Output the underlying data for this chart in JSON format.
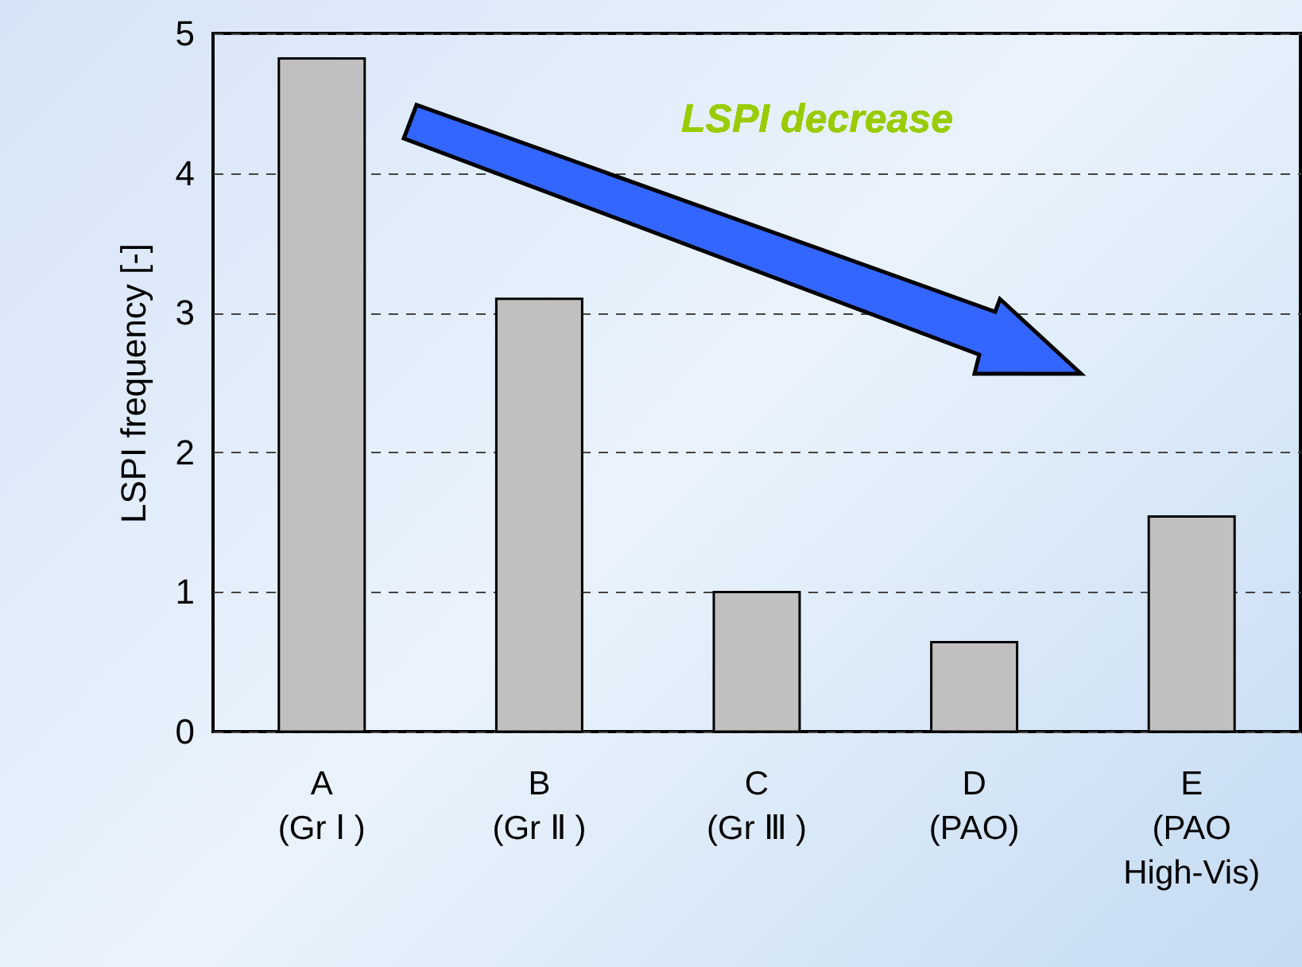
{
  "chart_data": {
    "type": "bar",
    "ylabel": "LSPI frequency [-]",
    "categories": [
      "A\n(Gr Ⅰ )",
      "B\n(Gr Ⅱ )",
      "C\n(Gr Ⅲ )",
      "D\n(PAO)",
      "E\n(PAO\nHigh-Vis)"
    ],
    "values": [
      4.82,
      3.1,
      1.0,
      0.64,
      1.54
    ],
    "color": "#c0c0c0",
    "ylim": [
      0,
      5
    ],
    "yticks": [
      0,
      1,
      2,
      3,
      4,
      5
    ],
    "grid": "y",
    "annotations": [
      "LSPI decrease"
    ]
  }
}
